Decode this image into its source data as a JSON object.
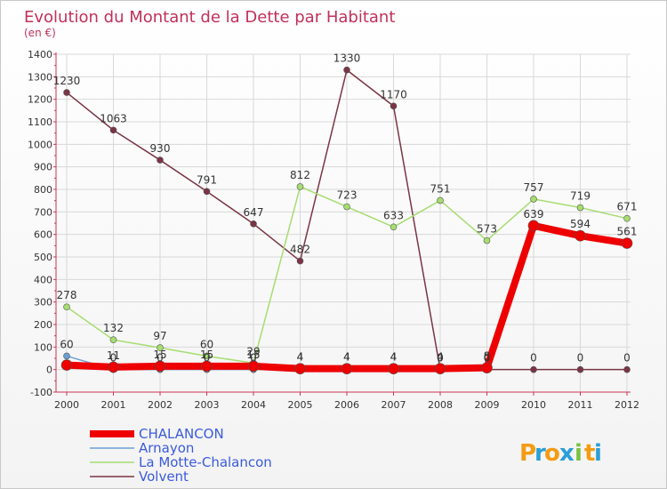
{
  "chart_data": {
    "type": "line",
    "title": "Evolution du Montant de la Dette par Habitant",
    "unit_label": "(en €)",
    "xlabel": "",
    "ylabel": "",
    "ylim": [
      -100,
      1400
    ],
    "yticks": [
      -100,
      0,
      100,
      200,
      300,
      400,
      500,
      600,
      700,
      800,
      900,
      1000,
      1100,
      1200,
      1300,
      1400
    ],
    "categories": [
      "2000",
      "2001",
      "2002",
      "2003",
      "2004",
      "2005",
      "2006",
      "2007",
      "2008",
      "2009",
      "2010",
      "2011",
      "2012"
    ],
    "series": [
      {
        "name": "Volvent",
        "color": "#7a3545",
        "labels": [
          "1230",
          "1063",
          "930",
          "791",
          "647",
          "482",
          "1330",
          "1170",
          "0",
          "0",
          "0",
          "0",
          "0"
        ],
        "values": [
          1230,
          1063,
          930,
          791,
          647,
          482,
          1330,
          1170,
          0,
          0,
          0,
          0,
          0
        ]
      },
      {
        "name": "La Motte-Chalancon",
        "color": "#a6dd70",
        "labels": [
          "278",
          "132",
          "97",
          "60",
          "29",
          "812",
          "723",
          "633",
          "751",
          "573",
          "757",
          "719",
          "671"
        ],
        "values": [
          278,
          132,
          97,
          60,
          29,
          812,
          723,
          633,
          751,
          573,
          757,
          719,
          671
        ]
      },
      {
        "name": "Arnayon",
        "color": "#6a9fd4",
        "labels": [
          "60",
          "0",
          "0",
          "0",
          "0",
          "4",
          "4",
          "4",
          "0",
          "0",
          "",
          "",
          ""
        ],
        "values": [
          60,
          0,
          0,
          0,
          0,
          4,
          4,
          4,
          0,
          0,
          null,
          null,
          null
        ]
      },
      {
        "name": "CHALANCON",
        "color": "#ee0000",
        "labels": [
          "",
          "11",
          "15",
          "15",
          "15",
          "4",
          "4",
          "4",
          "4",
          "8",
          "639",
          "594",
          "561"
        ],
        "values": [
          20,
          11,
          15,
          15,
          15,
          4,
          4,
          4,
          4,
          8,
          639,
          594,
          561
        ]
      }
    ],
    "legend": [
      "CHALANCON",
      "Arnayon",
      "La Motte-Chalancon",
      "Volvent"
    ],
    "legend_position": "bottom-left"
  },
  "logo": {
    "letters": [
      "P",
      "r",
      "o",
      "x",
      "i",
      "t",
      "i"
    ],
    "colors": [
      "#f39c12",
      "#2a9fd6",
      "#f39c12",
      "#2a9fd6",
      "#7cc242",
      "#f39c12",
      "#2a9fd6"
    ]
  }
}
